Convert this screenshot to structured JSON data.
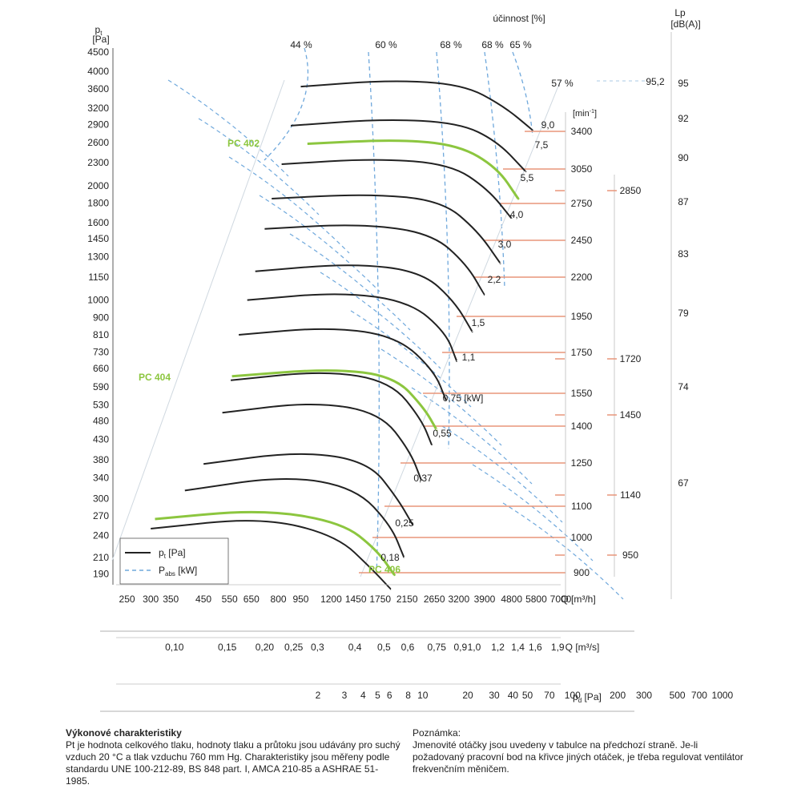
{
  "chart_data": {
    "type": "line",
    "y_axis": {
      "symbol": "p",
      "subscript": "t",
      "unit": "[Pa]",
      "ticks": [
        4500,
        4000,
        3600,
        3200,
        2900,
        2600,
        2300,
        2000,
        1800,
        1600,
        1450,
        1300,
        1150,
        1000,
        900,
        810,
        730,
        660,
        590,
        530,
        480,
        430,
        380,
        340,
        300,
        270,
        240,
        210,
        190
      ]
    },
    "x_axes": [
      {
        "label": "Q [m³/h]",
        "ticks": [
          250,
          300,
          350,
          450,
          550,
          650,
          800,
          950,
          1200,
          1450,
          1750,
          2150,
          2650,
          3200,
          3900,
          4800,
          5800,
          7000
        ]
      },
      {
        "label": "Q [m³/s]",
        "ticks": [
          "0,10",
          "0,15",
          "0,20",
          "0,25",
          "0,3",
          "0,4",
          "0,5",
          "0,6",
          "0,75",
          "0,9",
          "1,0",
          "1,2",
          "1,4",
          "1,6",
          "1,9"
        ]
      },
      {
        "label": "p",
        "label_sub": "d",
        "label_unit": "[Pa]",
        "ticks": [
          2,
          3,
          4,
          5,
          6,
          8,
          10,
          20,
          30,
          40,
          50,
          70,
          100,
          200,
          300,
          500,
          700,
          1000
        ]
      }
    ],
    "efficiency": {
      "title": "účinnost [%]",
      "labels": [
        "44 %",
        "60 %",
        "68 %",
        "68 %",
        "65 %",
        "57 %"
      ],
      "bep_value": "95,2"
    },
    "noise": {
      "title": "Lp",
      "unit": "[dB(A)]",
      "ticks": [
        95,
        92,
        90,
        87,
        83,
        79,
        74,
        67
      ]
    },
    "speed": {
      "unit_main": "[min",
      "unit_sup": "-1",
      "unit_end": "]",
      "values": [
        3400,
        3050,
        2750,
        2450,
        2200,
        1950,
        1750,
        1550,
        1400,
        1250,
        1100,
        1000,
        900
      ],
      "alt_values": [
        2850,
        1720,
        1450,
        1140,
        950
      ]
    },
    "power_labels": [
      "9,0",
      "7,5",
      "5,5",
      "4,0",
      "3,0",
      "2,2",
      "1,5",
      "1,1",
      "0,75 [kW]",
      "0,55",
      "0,37",
      "0,25",
      "0,18"
    ],
    "curves_black": [
      {
        "pts": [
          [
            950,
            3650
          ],
          [
            1900,
            3800
          ],
          [
            3300,
            3700
          ],
          [
            4500,
            3250
          ],
          [
            5650,
            2800
          ]
        ]
      },
      {
        "pts": [
          [
            880,
            2880
          ],
          [
            1800,
            3000
          ],
          [
            3200,
            2930
          ],
          [
            4300,
            2620
          ],
          [
            5350,
            2180
          ]
        ]
      },
      {
        "pts": [
          [
            820,
            2280
          ],
          [
            1700,
            2360
          ],
          [
            3000,
            2280
          ],
          [
            4000,
            1960
          ],
          [
            4800,
            1640
          ]
        ]
      },
      {
        "pts": [
          [
            760,
            1850
          ],
          [
            1600,
            1905
          ],
          [
            2800,
            1830
          ],
          [
            3700,
            1520
          ],
          [
            4400,
            1250
          ]
        ]
      },
      {
        "pts": [
          [
            720,
            1540
          ],
          [
            1500,
            1590
          ],
          [
            2600,
            1500
          ],
          [
            3400,
            1240
          ],
          [
            3900,
            1030
          ]
        ]
      },
      {
        "pts": [
          [
            670,
            1190
          ],
          [
            1400,
            1250
          ],
          [
            2400,
            1190
          ],
          [
            3100,
            990
          ],
          [
            3550,
            825
          ]
        ]
      },
      {
        "pts": [
          [
            630,
            1000
          ],
          [
            1300,
            1050
          ],
          [
            2200,
            990
          ],
          [
            2900,
            820
          ],
          [
            3150,
            690
          ]
        ]
      },
      {
        "pts": [
          [
            590,
            810
          ],
          [
            1200,
            850
          ],
          [
            2000,
            800
          ],
          [
            2650,
            650
          ],
          [
            2900,
            545
          ]
        ]
      },
      {
        "pts": [
          [
            555,
            615
          ],
          [
            1150,
            652
          ],
          [
            1900,
            610
          ],
          [
            2400,
            485
          ],
          [
            2600,
            415
          ]
        ]
      },
      {
        "pts": [
          [
            520,
            505
          ],
          [
            1050,
            540
          ],
          [
            1750,
            505
          ],
          [
            2200,
            400
          ],
          [
            2400,
            335
          ]
        ]
      },
      {
        "pts": [
          [
            450,
            370
          ],
          [
            950,
            400
          ],
          [
            1600,
            375
          ],
          [
            2000,
            300
          ],
          [
            2250,
            255
          ]
        ]
      },
      {
        "pts": [
          [
            390,
            315
          ],
          [
            850,
            345
          ],
          [
            1450,
            320
          ],
          [
            1900,
            255
          ],
          [
            2100,
            210
          ]
        ]
      },
      {
        "pts": [
          [
            300,
            250
          ],
          [
            700,
            268
          ],
          [
            1250,
            240
          ],
          [
            1650,
            195
          ],
          [
            1900,
            173
          ]
        ]
      }
    ],
    "curves_green": [
      {
        "name": "PC 402",
        "pts": [
          [
            1000,
            2580
          ],
          [
            2000,
            2650
          ],
          [
            3200,
            2560
          ],
          [
            4300,
            2230
          ],
          [
            5050,
            1850
          ]
        ]
      },
      {
        "name": "PC 404",
        "pts": [
          [
            560,
            630
          ],
          [
            1200,
            660
          ],
          [
            1950,
            630
          ],
          [
            2450,
            520
          ],
          [
            2700,
            455
          ]
        ]
      },
      {
        "name": "PC 406",
        "pts": [
          [
            310,
            265
          ],
          [
            700,
            281
          ],
          [
            1300,
            260
          ],
          [
            1700,
            220
          ],
          [
            1950,
            189
          ]
        ]
      }
    ],
    "legend": [
      {
        "symbol": "p",
        "sub": "t",
        "unit": " [Pa]"
      },
      {
        "symbol": "P",
        "sub": "abs",
        "unit": " [kW]"
      }
    ]
  },
  "notes": {
    "left_title": "Výkonové charakteristiky",
    "left_text": "Pt je hodnota celkového tlaku, hodnoty tlaku a průtoku jsou udávány pro suchý vzduch 20 °C a tlak vzduchu 760 mm Hg. Charakteristiky jsou měřeny podle standardu UNE 100-212-89, BS 848 part. I, AMCA 210-85 a ASHRAE 51-1985.",
    "right_title": "Poznámka:",
    "right_text": "Jmenovité otáčky jsou uvedeny v tabulce na předchozí straně. Je-li požadovaný pracovní bod na křivce jiných otáček, je třeba regulovat ventilátor frekvenčním měničem."
  },
  "colors": {
    "curve": "#222222",
    "green": "#8cc63f",
    "power": "#6fa8dc",
    "speed": "#e8967a",
    "axis": "#333333"
  }
}
